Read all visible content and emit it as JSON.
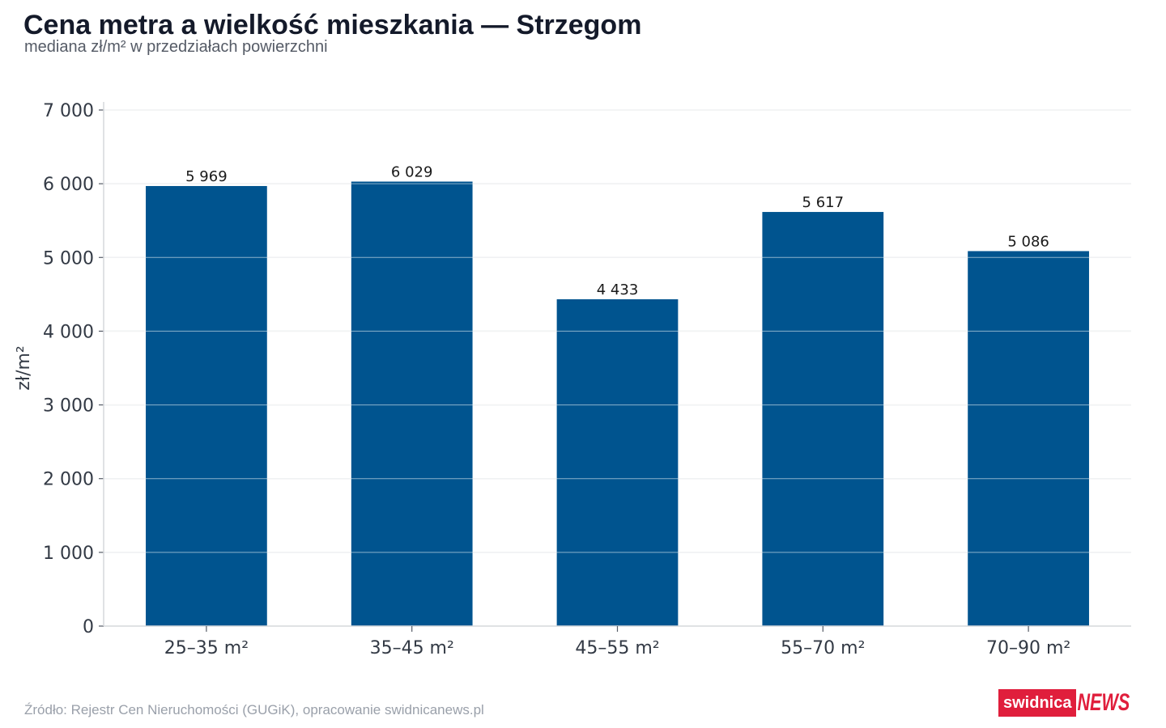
{
  "chart_data": {
    "type": "bar",
    "title": "Cena metra a wielkość mieszkania — Strzegom",
    "subtitle": "mediana zł/m² w przedziałach powierzchni",
    "xlabel": "",
    "ylabel": "zł/m²",
    "categories": [
      "25–35 m²",
      "35–45 m²",
      "45–55 m²",
      "55–70 m²",
      "70–90 m²"
    ],
    "values": [
      5969,
      6029,
      4433,
      5617,
      5086
    ],
    "value_labels": [
      "5 969",
      "6 029",
      "4 433",
      "5 617",
      "5 086"
    ],
    "ylim": [
      0,
      7000
    ],
    "yticks": [
      0,
      1000,
      2000,
      3000,
      4000,
      5000,
      6000,
      7000
    ],
    "ytick_labels": [
      "0",
      "1 000",
      "2 000",
      "3 000",
      "4 000",
      "5 000",
      "6 000",
      "7 000"
    ],
    "grid": true,
    "bar_color": "#00548f",
    "grid_color": "#e6e8ea"
  },
  "footer": {
    "source": "Źródło: Rejestr Cen Nieruchomości (GUGiK), opracowanie swidnicanews.pl",
    "logo_part1": "swidnica",
    "logo_part2": "NEWS"
  }
}
